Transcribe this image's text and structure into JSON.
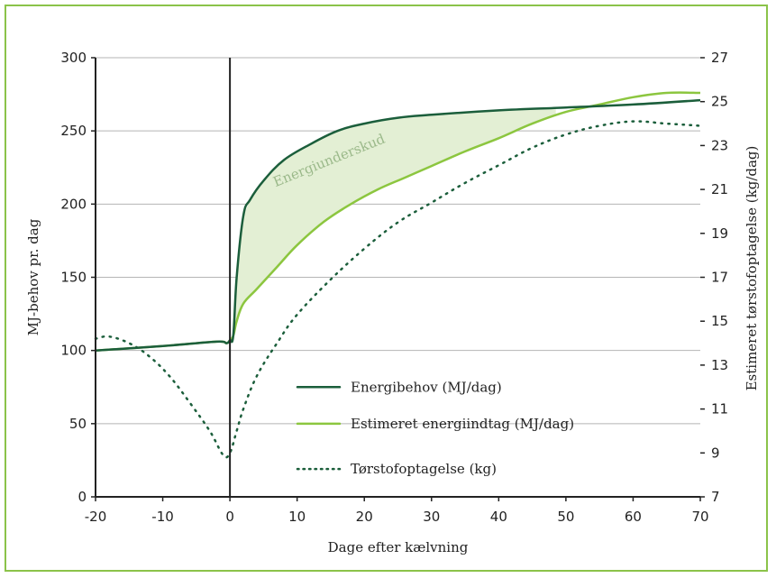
{
  "chart_data": {
    "type": "line",
    "title": "",
    "xlabel": "Dage efter kælvning",
    "ylabel": "MJ-behov pr. dag",
    "y2label": "Estimeret tørstofoptagelse (kg/dag)",
    "xlim": [
      -20,
      70
    ],
    "ylim": [
      0,
      300
    ],
    "y2lim": [
      7,
      27
    ],
    "x_ticks": [
      "-20",
      "-10",
      "0",
      "10",
      "20",
      "30",
      "40",
      "50",
      "60",
      "70"
    ],
    "y_ticks": [
      "0",
      "50",
      "100",
      "150",
      "200",
      "250",
      "300"
    ],
    "y2_ticks": [
      "7",
      "9",
      "11",
      "13",
      "15",
      "17",
      "19",
      "21",
      "23",
      "25",
      "27"
    ],
    "grid": "horizontal",
    "legend_position": "lower-right",
    "annotation": "Energiunderskud",
    "colors": {
      "dark": "#1b5e3b",
      "light": "#8cc63f",
      "fill": "#e3efd4",
      "frame": "#8bc34a",
      "grid": "#b5b5b5"
    },
    "series": [
      {
        "name": "Energibehov (MJ/dag)",
        "axis": "left",
        "style": "solid-dark",
        "x": [
          -20,
          -10,
          -2,
          -0.5,
          0,
          0.5,
          1,
          2,
          3,
          5,
          8,
          12,
          16,
          20,
          25,
          30,
          40,
          50,
          60,
          70
        ],
        "y": [
          100,
          103,
          106,
          105,
          107,
          110,
          150,
          192,
          203,
          216,
          230,
          241,
          250,
          255,
          259,
          261,
          264,
          266,
          268,
          271
        ]
      },
      {
        "name": "Estimeret energiindtag (MJ/dag)",
        "axis": "left",
        "style": "solid-light",
        "x": [
          -20,
          -10,
          -2,
          -0.5,
          0,
          0.5,
          1,
          2,
          4,
          7,
          10,
          14,
          18,
          22,
          26,
          30,
          35,
          40,
          45,
          50,
          55,
          60,
          65,
          70
        ],
        "y": [
          100,
          103,
          106,
          105,
          107,
          110,
          120,
          132,
          142,
          157,
          172,
          188,
          200,
          210,
          218,
          226,
          236,
          245,
          255,
          263,
          268,
          273,
          276,
          276
        ]
      },
      {
        "name": "Tørstofoptagelse (kg)",
        "axis": "right",
        "style": "dotted-dark",
        "x": [
          -20,
          -18,
          -15,
          -12,
          -9,
          -6,
          -3,
          -1,
          0,
          1,
          2,
          4,
          7,
          10,
          15,
          20,
          25,
          30,
          35,
          40,
          45,
          50,
          55,
          60,
          65,
          70
        ],
        "y": [
          14.2,
          14.3,
          14.0,
          13.4,
          12.5,
          11.3,
          10.0,
          8.9,
          9.0,
          10.0,
          11.0,
          12.5,
          14.0,
          15.3,
          16.9,
          18.3,
          19.5,
          20.4,
          21.3,
          22.1,
          22.9,
          23.5,
          23.9,
          24.1,
          24.0,
          23.9
        ]
      }
    ]
  }
}
